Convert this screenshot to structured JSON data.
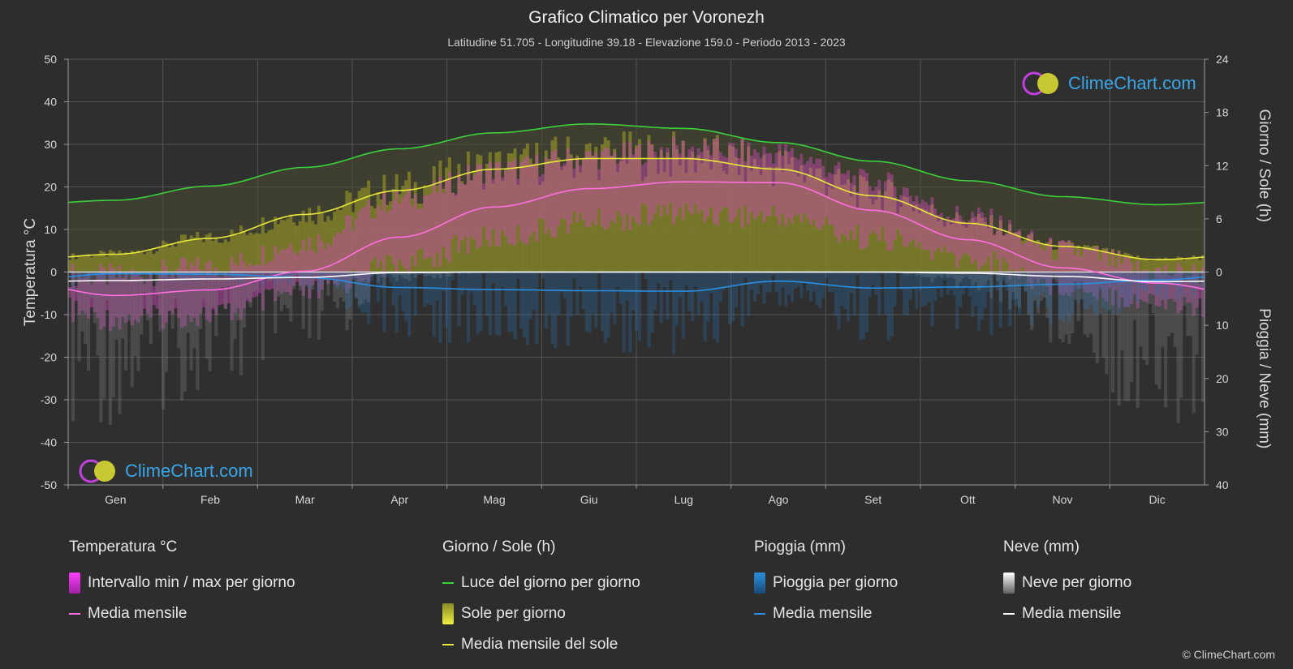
{
  "title": "Grafico Climatico per Voronezh",
  "subtitle": "Latitudine 51.705 - Longitudine 39.18 - Elevazione 159.0 - Periodo 2013 - 2023",
  "logo_text": "ClimeChart.com",
  "copyright": "© ClimeChart.com",
  "colors": {
    "background": "#2d2d2d",
    "daylight": "#3bd13b",
    "sun_mean": "#e8e83a",
    "sun_fill": "#9a9a2a",
    "temp_mean": "#ff6fe0",
    "temp_range": "#e040c8",
    "rain": "#2a8fe0",
    "snow": "#ffffff"
  },
  "legend": {
    "temp": {
      "title": "Temperatura °C",
      "items": [
        "Intervallo min / max per giorno",
        "Media mensile"
      ]
    },
    "sun": {
      "title": "Giorno / Sole (h)",
      "items": [
        "Luce del giorno per giorno",
        "Sole per giorno",
        "Media mensile del sole"
      ]
    },
    "rain": {
      "title": "Pioggia (mm)",
      "items": [
        "Pioggia per giorno",
        "Media mensile"
      ]
    },
    "snow": {
      "title": "Neve (mm)",
      "items": [
        "Neve per giorno",
        "Media mensile"
      ]
    }
  },
  "chart_data": {
    "type": "line",
    "categories": [
      "Gen",
      "Feb",
      "Mar",
      "Apr",
      "Mag",
      "Giu",
      "Lug",
      "Ago",
      "Set",
      "Ott",
      "Nov",
      "Dic"
    ],
    "y_left": {
      "label": "Temperatura °C",
      "range": [
        -50,
        50
      ],
      "ticks": [
        50,
        40,
        30,
        20,
        10,
        0,
        -10,
        -20,
        -30,
        -40,
        -50
      ]
    },
    "y_right_top": {
      "label": "Giorno / Sole (h)",
      "range": [
        0,
        24
      ],
      "ticks": [
        24,
        18,
        12,
        6,
        0
      ]
    },
    "y_right_bottom": {
      "label": "Pioggia / Neve (mm)",
      "range": [
        0,
        40
      ],
      "ticks": [
        0,
        10,
        20,
        30,
        40
      ]
    },
    "grid": true,
    "series": [
      {
        "name": "Luce del giorno per giorno",
        "axis": "hours",
        "values": [
          8.1,
          9.7,
          11.8,
          13.9,
          15.7,
          16.7,
          16.2,
          14.6,
          12.5,
          10.3,
          8.5,
          7.6
        ]
      },
      {
        "name": "Media mensile del sole",
        "axis": "hours",
        "values": [
          2.0,
          3.8,
          6.5,
          9.2,
          11.6,
          12.8,
          12.8,
          11.6,
          8.6,
          5.5,
          2.9,
          1.4
        ]
      },
      {
        "name": "Temperatura Media mensile",
        "axis": "temp",
        "values": [
          -5.5,
          -4.2,
          0.2,
          8.2,
          15.3,
          19.6,
          21.2,
          21.0,
          14.5,
          7.6,
          1.0,
          -2.6
        ]
      },
      {
        "name": "Pioggia Media mensile",
        "axis": "mm",
        "values": [
          0.3,
          0.4,
          1.0,
          2.9,
          3.3,
          3.5,
          3.6,
          1.7,
          3.0,
          2.8,
          2.3,
          1.5
        ]
      },
      {
        "name": "Neve Media mensile",
        "axis": "mm",
        "values": [
          1.6,
          1.3,
          1.0,
          0.1,
          0.0,
          0.0,
          0.0,
          0.0,
          0.0,
          0.2,
          0.8,
          1.8
        ]
      },
      {
        "name": "Intervallo min / max per giorno - max",
        "axis": "temp",
        "values": [
          -1,
          1,
          7,
          17,
          24,
          27,
          29,
          28,
          21,
          13,
          5,
          0
        ]
      },
      {
        "name": "Intervallo min / max per giorno - min",
        "axis": "temp",
        "values": [
          -11,
          -10,
          -5,
          2,
          8,
          12,
          14,
          13,
          8,
          3,
          -3,
          -7
        ]
      }
    ]
  }
}
